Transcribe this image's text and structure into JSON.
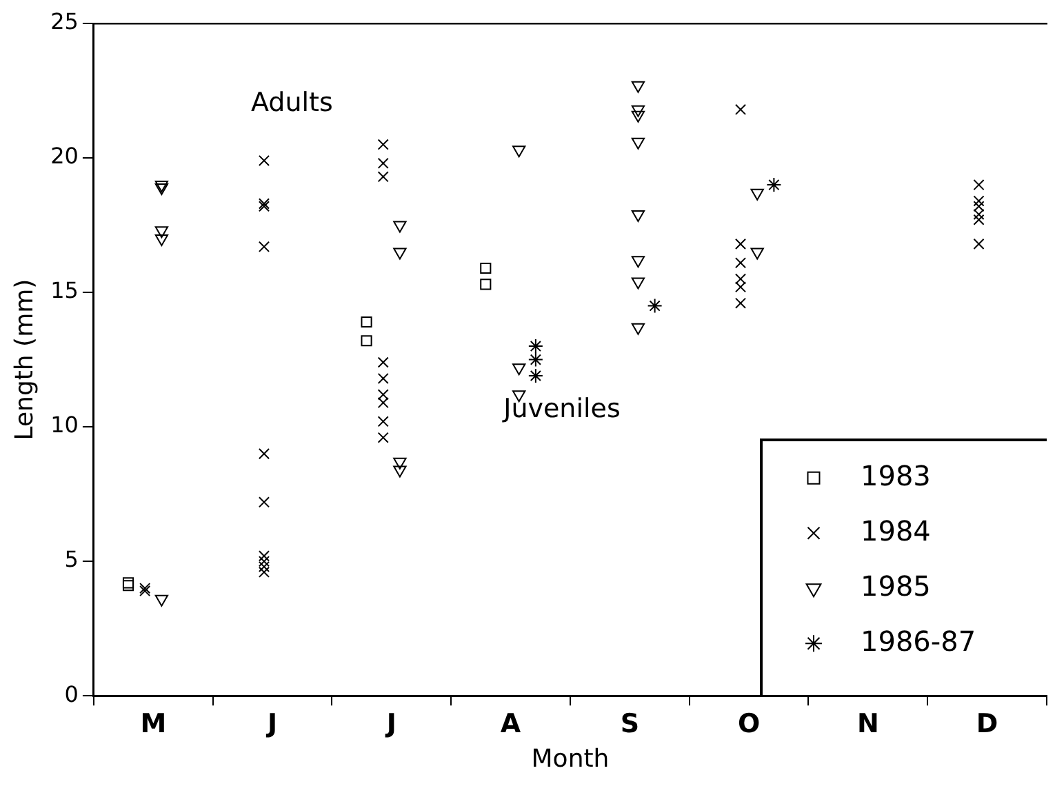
{
  "chart_data": {
    "type": "scatter",
    "xlabel": "Month",
    "ylabel": "Length (mm)",
    "categories": [
      "M",
      "J",
      "J",
      "A",
      "S",
      "O",
      "N",
      "D"
    ],
    "ylim": [
      0,
      25
    ],
    "yticks": [
      0,
      5,
      10,
      15,
      20,
      25
    ],
    "grid": false,
    "legend": "bottom right",
    "annotations": [
      "Adults",
      "Juveniles"
    ],
    "series": [
      {
        "name": "1983",
        "color": "#000000",
        "marker": "square",
        "values": [
          4.2,
          null,
          13.9,
          15.9,
          null,
          null,
          null,
          null
        ]
      },
      {
        "color": "#000000",
        "marker": "square",
        "values": [
          4.1,
          null,
          13.2,
          15.3,
          null,
          null,
          null,
          null
        ]
      },
      {
        "name": "1984",
        "color": "#000000",
        "marker": "cross",
        "values": [
          4.0,
          19.9,
          20.5,
          null,
          null,
          21.8,
          null,
          19.0
        ]
      },
      {
        "color": "#000000",
        "marker": "cross",
        "values": [
          3.9,
          18.3,
          19.8,
          null,
          null,
          16.8,
          null,
          18.4
        ]
      },
      {
        "color": "#000000",
        "marker": "cross",
        "values": [
          null,
          18.2,
          19.3,
          null,
          null,
          16.1,
          null,
          18.2
        ]
      },
      {
        "color": "#000000",
        "marker": "cross",
        "values": [
          null,
          16.7,
          12.4,
          null,
          null,
          15.5,
          null,
          17.9
        ]
      },
      {
        "color": "#000000",
        "marker": "cross",
        "values": [
          null,
          9.0,
          11.8,
          null,
          null,
          15.2,
          null,
          17.7
        ]
      },
      {
        "color": "#000000",
        "marker": "cross",
        "values": [
          null,
          7.2,
          11.2,
          null,
          null,
          14.6,
          null,
          16.8
        ]
      },
      {
        "color": "#000000",
        "marker": "cross",
        "values": [
          null,
          5.2,
          10.9,
          null,
          null,
          null,
          null,
          null
        ]
      },
      {
        "color": "#000000",
        "marker": "cross",
        "values": [
          null,
          5.0,
          10.2,
          null,
          null,
          null,
          null,
          null
        ]
      },
      {
        "color": "#000000",
        "marker": "cross",
        "values": [
          null,
          4.8,
          9.6,
          null,
          null,
          null,
          null,
          null
        ]
      },
      {
        "color": "#000000",
        "marker": "cross",
        "values": [
          null,
          4.6,
          null,
          null,
          null,
          null,
          null,
          null
        ]
      },
      {
        "name": "1985",
        "color": "#000000",
        "marker": "triangle",
        "values": [
          19.0,
          null,
          17.5,
          20.3,
          21.8,
          18.7,
          null,
          null
        ]
      },
      {
        "color": "#000000",
        "marker": "triangle",
        "values": [
          18.9,
          null,
          16.5,
          12.2,
          20.6,
          16.5,
          null,
          null
        ]
      },
      {
        "color": "#000000",
        "marker": "triangle",
        "values": [
          17.3,
          null,
          8.7,
          11.2,
          15.4,
          null,
          null,
          null
        ]
      },
      {
        "color": "#000000",
        "marker": "triangle",
        "values": [
          17.0,
          null,
          8.4,
          null,
          13.7,
          null,
          null,
          null
        ]
      },
      {
        "color": "#000000",
        "marker": "triangle",
        "values": [
          3.6,
          null,
          null,
          null,
          22.7,
          null,
          null,
          null
        ]
      },
      {
        "color": "#000000",
        "marker": "triangle",
        "values": [
          null,
          null,
          null,
          null,
          21.6,
          null,
          null,
          null
        ]
      },
      {
        "color": "#000000",
        "marker": "triangle",
        "values": [
          null,
          null,
          null,
          null,
          17.9,
          null,
          null,
          null
        ]
      },
      {
        "color": "#000000",
        "marker": "triangle",
        "values": [
          null,
          null,
          null,
          null,
          16.2,
          null,
          null,
          null
        ]
      },
      {
        "name": "1986-87",
        "color": "#000000",
        "values": [
          null,
          null,
          null,
          11.9,
          14.5,
          19.0,
          null,
          null
        ]
      },
      {
        "color": "#000000",
        "values": [
          null,
          null,
          null,
          13.0,
          null,
          null,
          null,
          null
        ]
      },
      {
        "color": "#000000",
        "values": [
          null,
          null,
          null,
          12.5,
          null,
          null,
          null,
          null
        ]
      }
    ]
  }
}
